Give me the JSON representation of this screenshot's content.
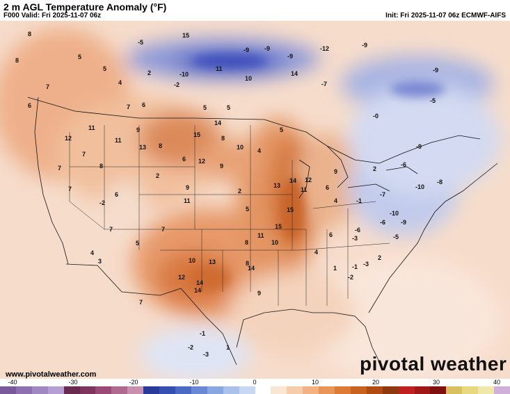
{
  "header": {
    "title": "2 m AGL Temperature Anomaly (°F)",
    "valid": "F000 Valid: Fri 2025-11-07 06z",
    "init": "Init: Fri 2025-11-07 06z ECMWF-AIFS"
  },
  "footer": {
    "website": "www.pivotalweather.com",
    "brand": "pivotal weather"
  },
  "colorbar": {
    "ticks": [
      "-40",
      "-30",
      "-20",
      "-10",
      "0",
      "10",
      "20",
      "30",
      "40"
    ],
    "colors": [
      "#7a5a9a",
      "#8e6fb0",
      "#a088c2",
      "#b4a0d2",
      "#6a2a50",
      "#80355f",
      "#9a4a75",
      "#b06a8f",
      "#c890ad",
      "#2a3a9a",
      "#3550b0",
      "#4a6ac4",
      "#6a88d4",
      "#8aa6e0",
      "#aac2ea",
      "#c8d8f2",
      "#ffffff",
      "#fbe6d4",
      "#f7ccab",
      "#f2b282",
      "#ea9558",
      "#dd7a35",
      "#c9621f",
      "#b04c12",
      "#8f3a0e",
      "#c22020",
      "#a01818",
      "#801010",
      "#d8c060",
      "#e8d880",
      "#f0e8a8",
      "#d0b0d8"
    ]
  },
  "map": {
    "labels": [
      {
        "text": "8"
      },
      {
        "text": "8"
      },
      {
        "text": "5"
      },
      {
        "text": "7"
      },
      {
        "text": "5"
      },
      {
        "text": "6"
      },
      {
        "text": "4"
      },
      {
        "text": "6"
      },
      {
        "text": "2"
      },
      {
        "text": "7"
      },
      {
        "text": "-5"
      },
      {
        "text": "15"
      },
      {
        "text": "-10"
      },
      {
        "text": "11"
      },
      {
        "text": "-2"
      },
      {
        "text": "10"
      },
      {
        "text": "-9"
      },
      {
        "text": "-9"
      },
      {
        "text": "-12"
      },
      {
        "text": "14"
      },
      {
        "text": "-9"
      },
      {
        "text": "-7"
      },
      {
        "text": "-9"
      },
      {
        "text": "-9"
      },
      {
        "text": "5"
      },
      {
        "text": "5"
      },
      {
        "text": "-5"
      },
      {
        "text": "11"
      },
      {
        "text": "12"
      },
      {
        "text": "9"
      },
      {
        "text": "8"
      },
      {
        "text": "15"
      },
      {
        "text": "14"
      },
      {
        "text": "13"
      },
      {
        "text": "10"
      },
      {
        "text": "8"
      },
      {
        "text": "11"
      },
      {
        "text": "7"
      },
      {
        "text": "7"
      },
      {
        "text": "8"
      },
      {
        "text": "4"
      },
      {
        "text": "2"
      },
      {
        "text": "6"
      },
      {
        "text": "12"
      },
      {
        "text": "9"
      },
      {
        "text": "-2"
      },
      {
        "text": "2"
      },
      {
        "text": "5"
      },
      {
        "text": "11"
      },
      {
        "text": "9"
      },
      {
        "text": "7"
      },
      {
        "text": "6"
      },
      {
        "text": "7"
      },
      {
        "text": "5"
      },
      {
        "text": "8"
      },
      {
        "text": "10"
      },
      {
        "text": "13"
      },
      {
        "text": "11"
      },
      {
        "text": "15"
      },
      {
        "text": "14"
      },
      {
        "text": "11"
      },
      {
        "text": "15"
      },
      {
        "text": "12"
      },
      {
        "text": "13"
      },
      {
        "text": "14"
      },
      {
        "text": "9"
      },
      {
        "text": "6"
      },
      {
        "text": "4"
      },
      {
        "text": "-1"
      },
      {
        "text": "-3"
      },
      {
        "text": "2"
      },
      {
        "text": "-6"
      },
      {
        "text": "-9"
      },
      {
        "text": "-10"
      },
      {
        "text": "-7"
      },
      {
        "text": "-10"
      },
      {
        "text": "-8"
      },
      {
        "text": "-6"
      },
      {
        "text": "-5"
      },
      {
        "text": "-9"
      },
      {
        "text": "4"
      },
      {
        "text": "7"
      },
      {
        "text": "5"
      },
      {
        "text": "10"
      },
      {
        "text": "12"
      },
      {
        "text": "14"
      },
      {
        "text": "7"
      },
      {
        "text": "8"
      },
      {
        "text": "14"
      },
      {
        "text": "9"
      },
      {
        "text": "3"
      },
      {
        "text": "6"
      },
      {
        "text": "4"
      },
      {
        "text": "-1"
      },
      {
        "text": "1"
      },
      {
        "text": "2"
      },
      {
        "text": "-3"
      },
      {
        "text": "-2"
      },
      {
        "text": "-1"
      },
      {
        "text": "-3"
      },
      {
        "text": "1"
      },
      {
        "text": "-6"
      },
      {
        "text": "-2"
      },
      {
        "text": "-0"
      }
    ]
  }
}
